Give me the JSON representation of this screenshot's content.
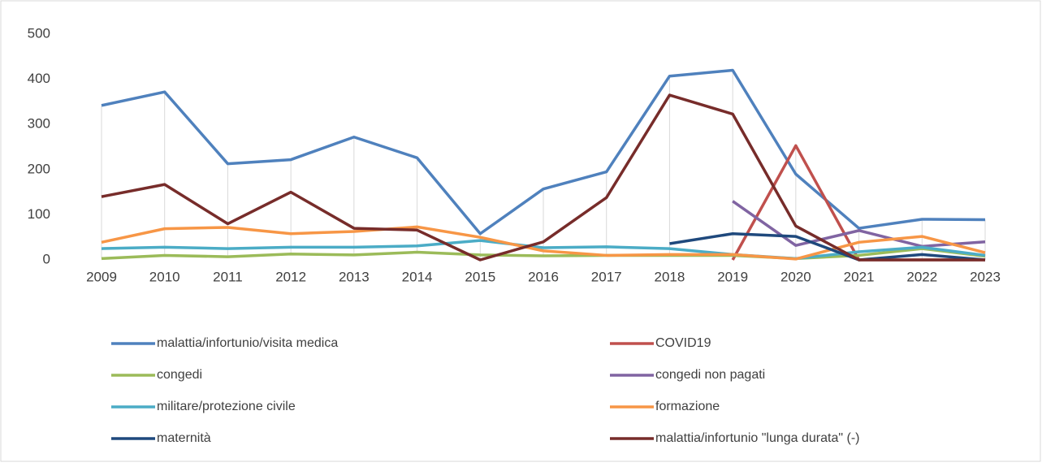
{
  "chart_data": {
    "type": "line",
    "categories": [
      "2009",
      "2010",
      "2011",
      "2012",
      "2013",
      "2014",
      "2015",
      "2016",
      "2017",
      "2018",
      "2019",
      "2020",
      "2021",
      "2022",
      "2023"
    ],
    "series": [
      {
        "name": "malattia/infortunio/visita medica",
        "color": "#4f81bd",
        "values": [
          342,
          372,
          213,
          222,
          272,
          226,
          58,
          157,
          195,
          407,
          420,
          190,
          70,
          90,
          89
        ]
      },
      {
        "name": "COVID19",
        "color": "#c0504d",
        "values": [
          null,
          null,
          null,
          null,
          null,
          null,
          null,
          null,
          null,
          null,
          0,
          253,
          0,
          0,
          0
        ]
      },
      {
        "name": "congedi",
        "color": "#9bbb59",
        "values": [
          3,
          10,
          7,
          13,
          11,
          17,
          11,
          9,
          10,
          10,
          10,
          3,
          10,
          25,
          8
        ]
      },
      {
        "name": "congedi non pagati",
        "color": "#8064a2",
        "values": [
          null,
          null,
          null,
          null,
          null,
          null,
          null,
          null,
          null,
          null,
          130,
          32,
          65,
          30,
          40
        ]
      },
      {
        "name": "militare/protezione civile",
        "color": "#4bacc6",
        "values": [
          25,
          28,
          25,
          28,
          28,
          31,
          43,
          27,
          29,
          25,
          12,
          3,
          18,
          28,
          10
        ]
      },
      {
        "name": "formazione",
        "color": "#f79646",
        "values": [
          39,
          69,
          72,
          58,
          63,
          73,
          50,
          20,
          10,
          12,
          12,
          2,
          39,
          52,
          16
        ]
      },
      {
        "name": "maternità",
        "color": "#1f497d",
        "values": [
          null,
          null,
          null,
          null,
          null,
          null,
          null,
          null,
          null,
          36,
          58,
          52,
          0,
          12,
          0
        ]
      },
      {
        "name": "malattia/infortunio \"lunga durata\" (-)",
        "color": "#772c2a",
        "values": [
          140,
          167,
          80,
          150,
          70,
          66,
          0,
          40,
          138,
          365,
          323,
          75,
          0,
          0,
          0
        ]
      }
    ],
    "ylim": [
      0,
      500
    ],
    "yticks": [
      0,
      100,
      200,
      300,
      400,
      500
    ],
    "grid": false,
    "hi_lo_lines": true,
    "legend": "bottom"
  }
}
